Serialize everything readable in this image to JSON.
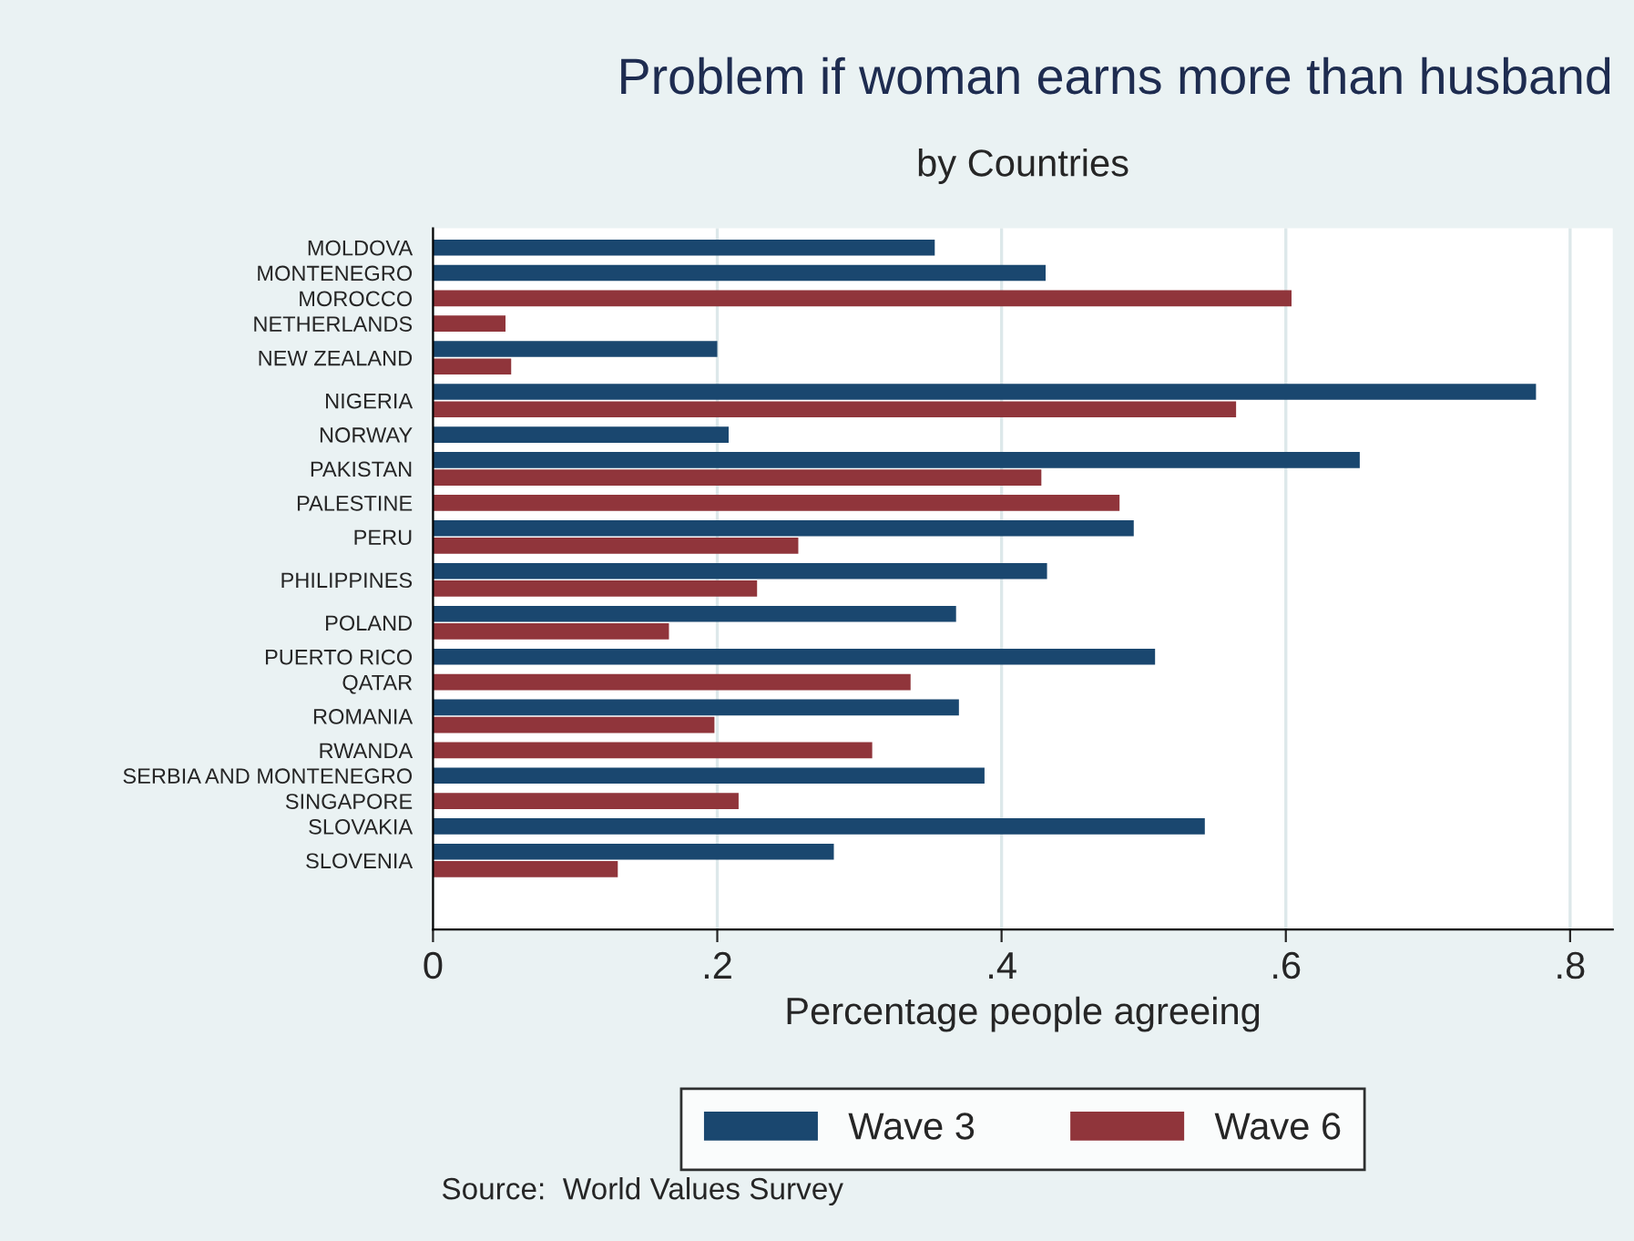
{
  "chart_data": {
    "type": "bar",
    "orientation": "horizontal",
    "title": "Problem if woman earns more than husband",
    "subtitle": "by Countries",
    "xlabel": "Percentage people agreeing",
    "categories": [
      "MOLDOVA",
      "MONTENEGRO",
      "MOROCCO",
      "NETHERLANDS",
      "NEW ZEALAND",
      "NIGERIA",
      "NORWAY",
      "PAKISTAN",
      "PALESTINE",
      "PERU",
      "PHILIPPINES",
      "POLAND",
      "PUERTO RICO",
      "QATAR",
      "ROMANIA",
      "RWANDA",
      "SERBIA AND MONTENEGRO",
      "SINGAPORE",
      "SLOVAKIA",
      "SLOVENIA"
    ],
    "series": [
      {
        "name": "Wave 3",
        "color": "#1a476f",
        "values": [
          0.353,
          0.431,
          null,
          null,
          0.2,
          0.776,
          0.208,
          0.652,
          null,
          0.493,
          0.432,
          0.368,
          0.508,
          null,
          0.37,
          null,
          0.388,
          null,
          0.543,
          0.282
        ]
      },
      {
        "name": "Wave 6",
        "color": "#90353b",
        "values": [
          null,
          null,
          0.604,
          0.051,
          0.055,
          0.565,
          null,
          0.428,
          0.483,
          0.257,
          0.228,
          0.166,
          null,
          0.336,
          0.198,
          0.309,
          null,
          0.215,
          null,
          0.13
        ]
      }
    ],
    "xlim": [
      0,
      0.83
    ],
    "xticks": [
      0,
      {
        "value": 0.2,
        "label": ".2"
      },
      {
        "value": 0.4,
        "label": ".4"
      },
      {
        "value": 0.6,
        "label": ".6"
      },
      {
        "value": 0.8,
        "label": ".8"
      }
    ],
    "grid": "x",
    "legend": "bottom",
    "annotations": [
      "Source:  World Values Survey"
    ]
  }
}
